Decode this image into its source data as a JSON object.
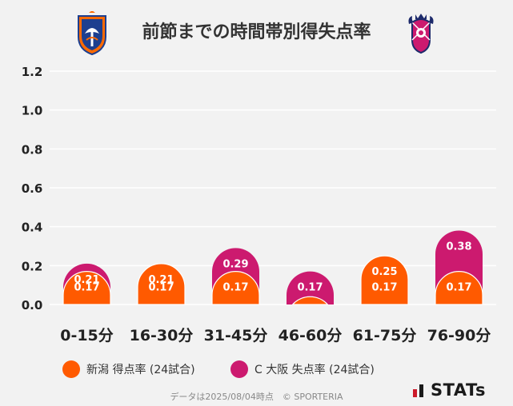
{
  "title": "前節までの時間帯別得失点率",
  "colors": {
    "team1": "#ff5a00",
    "team2": "#cc1a6f",
    "grid": "#ffffff",
    "axis_text": "#222222"
  },
  "emblems": {
    "left": "albirex-niigata-emblem",
    "right": "cerezo-osaka-emblem"
  },
  "legend": {
    "team1_label": "新潟 得点率 (24試合)",
    "team2_label": "C 大阪 失点率 (24試合)"
  },
  "footer": "データは2025/08/04時点　© SPORTERIA",
  "logo_text": "STATs",
  "chart_data": {
    "type": "bar",
    "categories": [
      "0-15分",
      "16-30分",
      "31-45分",
      "46-60分",
      "61-75分",
      "76-90分"
    ],
    "series": [
      {
        "name": "新潟 得点率 (24試合)",
        "values": [
          0.17,
          0.21,
          0.17,
          0.04,
          0.25,
          0.17
        ],
        "labels": [
          "0.17",
          "0.21",
          "0.17",
          "",
          "0.25",
          "0.17"
        ]
      },
      {
        "name": "C 大阪 失点率 (24試合)",
        "values": [
          0.21,
          0.17,
          0.29,
          0.17,
          0.17,
          0.38
        ],
        "labels": [
          "0.21",
          "0.17",
          "0.29",
          "0.17",
          "0.17",
          "0.38"
        ]
      }
    ],
    "ylim": [
      0,
      1.2
    ],
    "yticks": [
      "0.0",
      "0.2",
      "0.4",
      "0.6",
      "0.8",
      "1.0",
      "1.2"
    ],
    "title": "前節までの時間帯別得失点率",
    "xlabel": "",
    "ylabel": ""
  }
}
